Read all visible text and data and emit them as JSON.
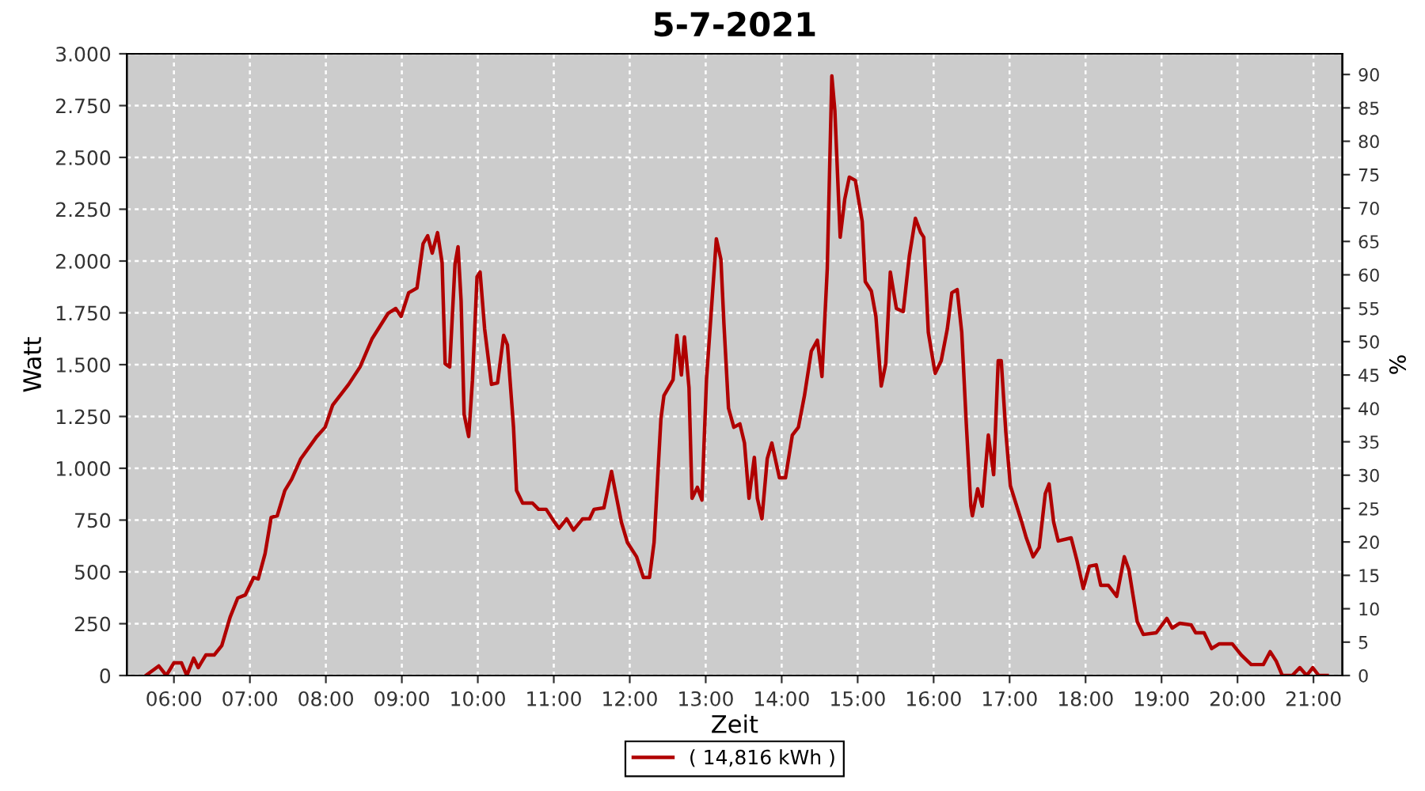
{
  "chart_data": {
    "type": "line",
    "title": "5-7-2021",
    "xlabel": "Zeit",
    "ylabel": "Watt",
    "y2label": "%",
    "xlim": [
      5.38,
      21.38
    ],
    "xticks": [
      {
        "value": 6,
        "label": "06:00"
      },
      {
        "value": 7,
        "label": "07:00"
      },
      {
        "value": 8,
        "label": "08:00"
      },
      {
        "value": 9,
        "label": "09:00"
      },
      {
        "value": 10,
        "label": "10:00"
      },
      {
        "value": 11,
        "label": "11:00"
      },
      {
        "value": 12,
        "label": "12:00"
      },
      {
        "value": 13,
        "label": "13:00"
      },
      {
        "value": 14,
        "label": "14:00"
      },
      {
        "value": 15,
        "label": "15:00"
      },
      {
        "value": 16,
        "label": "16:00"
      },
      {
        "value": 17,
        "label": "17:00"
      },
      {
        "value": 18,
        "label": "18:00"
      },
      {
        "value": 19,
        "label": "19:00"
      },
      {
        "value": 20,
        "label": "20:00"
      },
      {
        "value": 21,
        "label": "21:00"
      }
    ],
    "ylim": [
      0,
      3000
    ],
    "yticks": [
      0,
      250,
      500,
      750,
      {
        "value": 1000,
        "label": "1.000"
      },
      {
        "value": 1250,
        "label": "1.250"
      },
      {
        "value": 1500,
        "label": "1.500"
      },
      {
        "value": 1750,
        "label": "1.750"
      },
      {
        "value": 2000,
        "label": "2.000"
      },
      {
        "value": 2250,
        "label": "2.250"
      },
      {
        "value": 2500,
        "label": "2.500"
      },
      {
        "value": 2750,
        "label": "2.750"
      },
      {
        "value": 3000,
        "label": "3.000"
      }
    ],
    "y2lim": [
      0,
      93.1
    ],
    "y2ticks": [
      0,
      5,
      10,
      15,
      20,
      25,
      30,
      35,
      40,
      45,
      50,
      55,
      60,
      65,
      70,
      75,
      80,
      85,
      90
    ],
    "grid": true,
    "legend": "bottom",
    "series": [
      {
        "name": "( 14,816 kWh )",
        "color": "#b00000",
        "x": [
          5.63,
          5.8,
          5.9,
          6.0,
          6.1,
          6.17,
          6.26,
          6.32,
          6.42,
          6.53,
          6.63,
          6.74,
          6.84,
          6.94,
          7.05,
          7.11,
          7.2,
          7.28,
          7.36,
          7.46,
          7.55,
          7.67,
          7.88,
          7.99,
          8.09,
          8.3,
          8.45,
          8.61,
          8.82,
          8.92,
          8.99,
          9.09,
          9.2,
          9.28,
          9.34,
          9.4,
          9.47,
          9.53,
          9.57,
          9.63,
          9.7,
          9.74,
          9.78,
          9.82,
          9.88,
          9.93,
          9.99,
          10.03,
          10.09,
          10.18,
          10.26,
          10.34,
          10.39,
          10.47,
          10.51,
          10.59,
          10.72,
          10.8,
          10.9,
          11.01,
          11.07,
          11.17,
          11.26,
          11.38,
          11.47,
          11.53,
          11.66,
          11.76,
          11.8,
          11.89,
          11.97,
          12.09,
          12.18,
          12.26,
          12.32,
          12.41,
          12.45,
          12.57,
          12.62,
          12.68,
          12.72,
          12.78,
          12.82,
          12.89,
          12.95,
          13.01,
          13.14,
          13.2,
          13.24,
          13.3,
          13.37,
          13.45,
          13.51,
          13.57,
          13.64,
          13.68,
          13.74,
          13.81,
          13.87,
          13.97,
          14.05,
          14.14,
          14.22,
          14.3,
          14.39,
          14.47,
          14.53,
          14.6,
          14.66,
          14.7,
          14.77,
          14.83,
          14.89,
          14.97,
          15.06,
          15.1,
          15.18,
          15.24,
          15.31,
          15.37,
          15.43,
          15.51,
          15.6,
          15.68,
          15.76,
          15.83,
          15.87,
          15.93,
          16.02,
          16.1,
          16.18,
          16.24,
          16.31,
          16.37,
          16.43,
          16.49,
          16.51,
          16.58,
          16.64,
          16.72,
          16.79,
          16.85,
          16.89,
          16.95,
          17.01,
          17.16,
          17.22,
          17.31,
          17.39,
          17.47,
          17.52,
          17.58,
          17.64,
          17.81,
          17.89,
          17.97,
          18.05,
          18.14,
          18.2,
          18.3,
          18.41,
          18.51,
          18.57,
          18.68,
          18.76,
          18.93,
          19.07,
          19.14,
          19.24,
          19.39,
          19.45,
          19.56,
          19.66,
          19.76,
          19.93,
          20.05,
          20.18,
          20.34,
          20.43,
          20.51,
          20.59,
          20.72,
          20.82,
          20.91,
          20.99,
          21.07,
          21.18
        ],
        "values": [
          0,
          46,
          0,
          61,
          61,
          0,
          84,
          38,
          99,
          99,
          145,
          282,
          374,
          389,
          473,
          466,
          588,
          763,
          771,
          893,
          947,
          1046,
          1153,
          1198,
          1305,
          1405,
          1489,
          1626,
          1748,
          1771,
          1733,
          1847,
          1870,
          2084,
          2122,
          2038,
          2137,
          1992,
          1504,
          1489,
          1985,
          2069,
          1809,
          1260,
          1153,
          1427,
          1924,
          1947,
          1672,
          1405,
          1412,
          1641,
          1595,
          1198,
          893,
          832,
          832,
          802,
          802,
          740,
          710,
          756,
          702,
          756,
          756,
          802,
          809,
          985,
          908,
          740,
          641,
          573,
          473,
          473,
          641,
          1237,
          1351,
          1427,
          1641,
          1450,
          1634,
          1389,
          855,
          908,
          847,
          1427,
          2107,
          2008,
          1695,
          1290,
          1198,
          1214,
          1122,
          855,
          1053,
          855,
          756,
          1046,
          1122,
          954,
          954,
          1160,
          1198,
          1351,
          1565,
          1618,
          1443,
          1962,
          2893,
          2725,
          2115,
          2298,
          2405,
          2389,
          2191,
          1901,
          1855,
          1733,
          1397,
          1504,
          1947,
          1771,
          1756,
          2023,
          2206,
          2137,
          2115,
          1656,
          1458,
          1519,
          1672,
          1847,
          1862,
          1656,
          1214,
          817,
          771,
          901,
          817,
          1160,
          969,
          1519,
          1519,
          1176,
          916,
          740,
          664,
          573,
          618,
          878,
          924,
          740,
          649,
          664,
          550,
          420,
          527,
          534,
          435,
          435,
          382,
          573,
          511,
          260,
          198,
          206,
          275,
          229,
          252,
          244,
          206,
          206,
          130,
          153,
          153,
          99,
          53,
          53,
          115,
          69,
          0,
          0,
          38,
          0,
          38,
          0,
          0
        ]
      }
    ]
  }
}
